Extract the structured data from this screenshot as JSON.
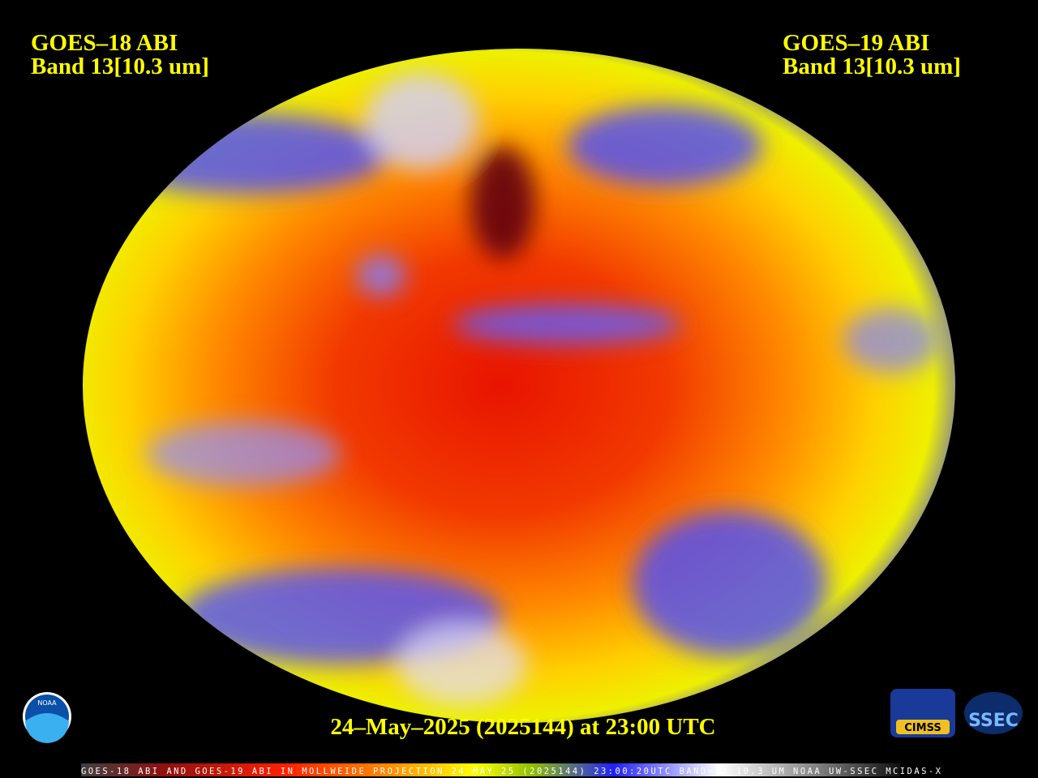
{
  "left_label": {
    "satellite": "GOES–18 ABI",
    "band": "Band 13[10.3 um]"
  },
  "right_label": {
    "satellite": "GOES–19 ABI",
    "band": "Band 13[10.3 um]"
  },
  "timestamp": "24–May–2025 (2025144) at 23:00 UTC",
  "footer_caption": "GOES-18 ABI AND GOES-19 ABI IN MOLLWEIDE PROJECTION 24 MAY 25 (2025144) 23:00:20UTC BAND=13 10.3 UM NOAA UW-SSEC MCIDAS-X",
  "logos": {
    "noaa": "NOAA",
    "cimss": "CIMSS",
    "ssec": "SSEC"
  }
}
